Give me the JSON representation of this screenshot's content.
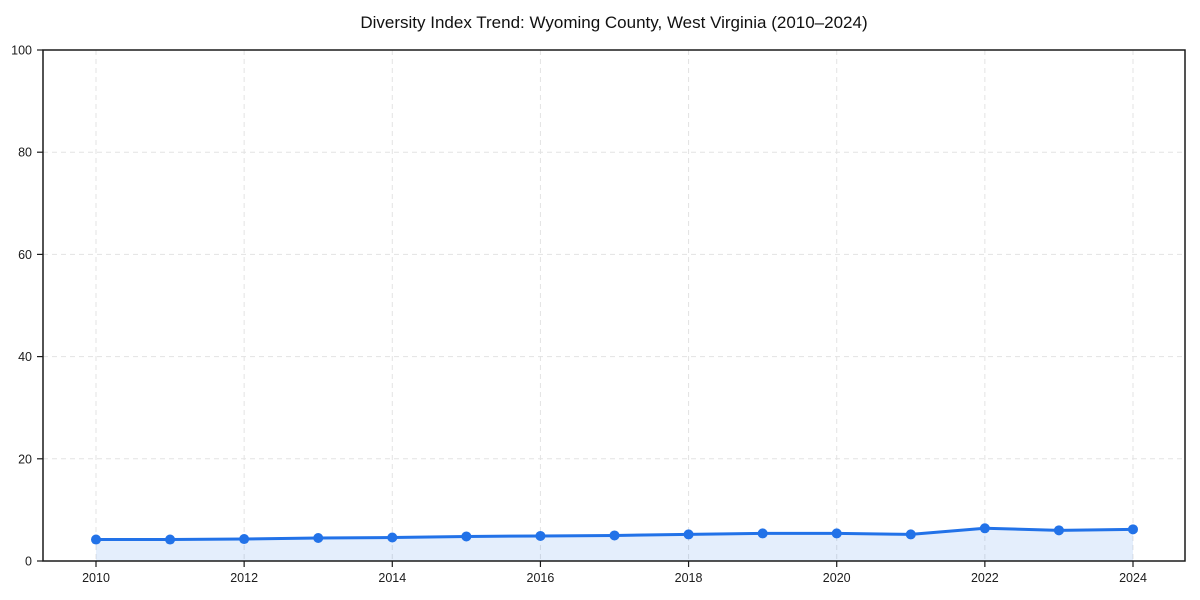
{
  "chart_data": {
    "type": "area",
    "title": "Diversity Index Trend: Wyoming County, West Virginia (2010–2024)",
    "xlabel": "",
    "ylabel": "",
    "x": [
      2010,
      2011,
      2012,
      2013,
      2014,
      2015,
      2016,
      2017,
      2018,
      2019,
      2020,
      2021,
      2022,
      2023,
      2024
    ],
    "series": [
      {
        "name": "Diversity Index",
        "values": [
          4.2,
          4.2,
          4.3,
          4.5,
          4.6,
          4.8,
          4.9,
          5.0,
          5.2,
          5.4,
          5.4,
          5.2,
          6.4,
          6.0,
          6.2
        ]
      }
    ],
    "ylim": [
      0,
      100
    ],
    "y_ticks": [
      0,
      20,
      40,
      60,
      80,
      100
    ],
    "x_tick_years": [
      2010,
      2012,
      2014,
      2016,
      2018,
      2020,
      2022,
      2024
    ],
    "grid": "dashed, both axes, at labeled ticks",
    "legend": "none",
    "colors": {
      "line": "#2272e8",
      "marker": "#2272e8",
      "area_fill": "rgba(34,114,232,0.12)",
      "gridline": "#e3e3e3",
      "spine": "#1a1a1a",
      "tick_label": "#1c1c1c",
      "background": "#ffffff"
    }
  }
}
